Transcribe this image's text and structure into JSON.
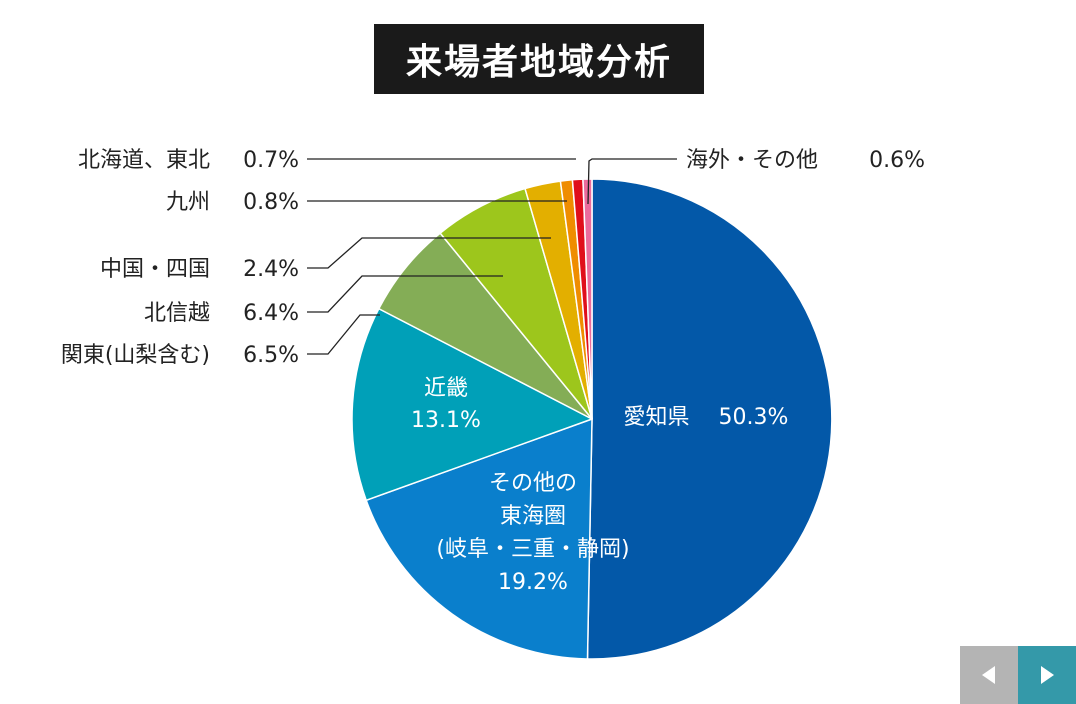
{
  "chart_data": {
    "type": "pie",
    "title": "来場者地域分析",
    "slices": [
      {
        "label": "愛知県",
        "value": 50.3,
        "value_label": "50.3%",
        "color": "#0358a8"
      },
      {
        "label": "その他の東海圏(岐阜・三重・静岡)",
        "label_lines": [
          "その他の",
          "東海圏",
          "(岐阜・三重・静岡)"
        ],
        "value": 19.2,
        "value_label": "19.2%",
        "color": "#0a7fcc"
      },
      {
        "label": "近畿",
        "value": 13.1,
        "value_label": "13.1%",
        "color": "#00a0b8"
      },
      {
        "label": "関東(山梨含む)",
        "value": 6.5,
        "value_label": "6.5%",
        "color": "#84ad56"
      },
      {
        "label": "北信越",
        "value": 6.4,
        "value_label": "6.4%",
        "color": "#9dc61c"
      },
      {
        "label": "中国・四国",
        "value": 2.4,
        "value_label": "2.4%",
        "color": "#e3af00"
      },
      {
        "label": "九州",
        "value": 0.8,
        "value_label": "0.8%",
        "color": "#ef8d00"
      },
      {
        "label": "北海道、東北",
        "value": 0.7,
        "value_label": "0.7%",
        "color": "#e00f1b"
      },
      {
        "label": "海外・その他",
        "value": 0.6,
        "value_label": "0.6%",
        "color": "#eb6b9c"
      }
    ]
  },
  "nav": {
    "prev_icon": "triangle-left-icon",
    "next_icon": "triangle-right-icon"
  }
}
